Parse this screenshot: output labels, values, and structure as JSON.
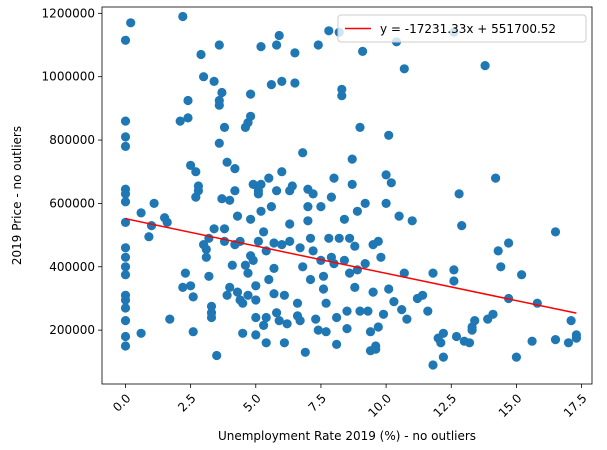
{
  "chart_data": {
    "type": "scatter",
    "xlabel": "Unemployment Rate 2019 (%) - no outliers",
    "ylabel": "2019 Price  - no outliers",
    "xlim": [
      -0.9,
      17.9
    ],
    "ylim": [
      30000,
      1220000
    ],
    "x_ticks": [
      0.0,
      2.5,
      5.0,
      7.5,
      10.0,
      12.5,
      15.0,
      17.5
    ],
    "x_tick_labels": [
      "0.0",
      "2.5",
      "5.0",
      "7.5",
      "10.0",
      "12.5",
      "15.0",
      "17.5"
    ],
    "y_ticks": [
      200000,
      400000,
      600000,
      800000,
      1000000,
      1200000
    ],
    "y_tick_labels": [
      "200000",
      "400000",
      "600000",
      "800000",
      "1000000",
      "1200000"
    ],
    "grid": false,
    "legend_position": "top-right",
    "colors": {
      "points": "#1f77b4",
      "fit_line": "#ff0000"
    },
    "fit_line": {
      "label": "y = -17231.33x + 551700.52",
      "slope": -17231.33,
      "intercept": 551700.52,
      "x_range": [
        0.0,
        17.3
      ]
    },
    "series": [
      {
        "points": [
          [
            0.0,
            1115000
          ],
          [
            0.2,
            1170000
          ],
          [
            0.0,
            860000
          ],
          [
            0.0,
            810000
          ],
          [
            0.0,
            780000
          ],
          [
            0.0,
            645000
          ],
          [
            0.0,
            630000
          ],
          [
            0.0,
            605000
          ],
          [
            0.0,
            540000
          ],
          [
            0.0,
            460000
          ],
          [
            0.0,
            430000
          ],
          [
            0.0,
            400000
          ],
          [
            0.0,
            375000
          ],
          [
            0.0,
            310000
          ],
          [
            0.0,
            295000
          ],
          [
            0.0,
            270000
          ],
          [
            0.0,
            230000
          ],
          [
            0.0,
            180000
          ],
          [
            0.0,
            150000
          ],
          [
            0.6,
            570000
          ],
          [
            0.6,
            190000
          ],
          [
            0.9,
            495000
          ],
          [
            1.0,
            530000
          ],
          [
            1.1,
            600000
          ],
          [
            1.5,
            555000
          ],
          [
            1.6,
            540000
          ],
          [
            1.7,
            235000
          ],
          [
            2.1,
            860000
          ],
          [
            2.2,
            1190000
          ],
          [
            2.2,
            335000
          ],
          [
            2.3,
            380000
          ],
          [
            2.4,
            870000
          ],
          [
            2.4,
            925000
          ],
          [
            2.5,
            720000
          ],
          [
            2.5,
            340000
          ],
          [
            2.6,
            195000
          ],
          [
            2.6,
            305000
          ],
          [
            2.7,
            700000
          ],
          [
            2.7,
            620000
          ],
          [
            2.8,
            640000
          ],
          [
            2.8,
            655000
          ],
          [
            2.9,
            1070000
          ],
          [
            3.0,
            1000000
          ],
          [
            3.0,
            470000
          ],
          [
            3.1,
            455000
          ],
          [
            3.1,
            430000
          ],
          [
            3.2,
            490000
          ],
          [
            3.2,
            370000
          ],
          [
            3.3,
            275000
          ],
          [
            3.3,
            255000
          ],
          [
            3.3,
            240000
          ],
          [
            3.4,
            520000
          ],
          [
            3.4,
            985000
          ],
          [
            3.5,
            120000
          ],
          [
            3.6,
            1100000
          ],
          [
            3.6,
            925000
          ],
          [
            3.6,
            910000
          ],
          [
            3.6,
            790000
          ],
          [
            3.7,
            615000
          ],
          [
            3.7,
            950000
          ],
          [
            3.8,
            520000
          ],
          [
            3.8,
            480000
          ],
          [
            3.8,
            840000
          ],
          [
            3.9,
            310000
          ],
          [
            3.9,
            730000
          ],
          [
            4.0,
            335000
          ],
          [
            4.0,
            610000
          ],
          [
            4.1,
            405000
          ],
          [
            4.2,
            710000
          ],
          [
            4.2,
            640000
          ],
          [
            4.2,
            470000
          ],
          [
            4.3,
            320000
          ],
          [
            4.3,
            560000
          ],
          [
            4.4,
            295000
          ],
          [
            4.4,
            480000
          ],
          [
            4.5,
            285000
          ],
          [
            4.5,
            190000
          ],
          [
            4.6,
            405000
          ],
          [
            4.6,
            840000
          ],
          [
            4.7,
            855000
          ],
          [
            4.7,
            310000
          ],
          [
            4.7,
            380000
          ],
          [
            4.8,
            435000
          ],
          [
            4.8,
            550000
          ],
          [
            4.8,
            875000
          ],
          [
            4.8,
            945000
          ],
          [
            4.9,
            420000
          ],
          [
            4.9,
            660000
          ],
          [
            5.0,
            340000
          ],
          [
            5.0,
            295000
          ],
          [
            5.0,
            240000
          ],
          [
            5.0,
            185000
          ],
          [
            5.1,
            640000
          ],
          [
            5.1,
            480000
          ],
          [
            5.1,
            630000
          ],
          [
            5.2,
            660000
          ],
          [
            5.2,
            575000
          ],
          [
            5.2,
            1095000
          ],
          [
            5.3,
            510000
          ],
          [
            5.3,
            215000
          ],
          [
            5.4,
            160000
          ],
          [
            5.4,
            240000
          ],
          [
            5.4,
            450000
          ],
          [
            5.5,
            680000
          ],
          [
            5.5,
            360000
          ],
          [
            5.6,
            975000
          ],
          [
            5.6,
            590000
          ],
          [
            5.7,
            315000
          ],
          [
            5.7,
            475000
          ],
          [
            5.7,
            395000
          ],
          [
            5.8,
            640000
          ],
          [
            5.8,
            255000
          ],
          [
            5.8,
            1100000
          ],
          [
            5.9,
            230000
          ],
          [
            5.9,
            1130000
          ],
          [
            6.0,
            985000
          ],
          [
            6.0,
            700000
          ],
          [
            6.0,
            470000
          ],
          [
            6.1,
            160000
          ],
          [
            6.1,
            310000
          ],
          [
            6.2,
            220000
          ],
          [
            6.3,
            640000
          ],
          [
            6.3,
            535000
          ],
          [
            6.3,
            480000
          ],
          [
            6.4,
            655000
          ],
          [
            6.5,
            980000
          ],
          [
            6.5,
            1075000
          ],
          [
            6.6,
            245000
          ],
          [
            6.6,
            285000
          ],
          [
            6.7,
            230000
          ],
          [
            6.7,
            460000
          ],
          [
            6.8,
            760000
          ],
          [
            6.8,
            400000
          ],
          [
            6.9,
            130000
          ],
          [
            7.0,
            645000
          ],
          [
            7.0,
            590000
          ],
          [
            7.0,
            545000
          ],
          [
            7.1,
            490000
          ],
          [
            7.1,
            360000
          ],
          [
            7.2,
            630000
          ],
          [
            7.2,
            450000
          ],
          [
            7.3,
            235000
          ],
          [
            7.4,
            200000
          ],
          [
            7.4,
            1100000
          ],
          [
            7.5,
            590000
          ],
          [
            7.5,
            420000
          ],
          [
            7.6,
            370000
          ],
          [
            7.6,
            330000
          ],
          [
            7.7,
            285000
          ],
          [
            7.7,
            195000
          ],
          [
            7.8,
            490000
          ],
          [
            7.8,
            1145000
          ],
          [
            7.9,
            620000
          ],
          [
            7.9,
            430000
          ],
          [
            8.0,
            680000
          ],
          [
            8.0,
            410000
          ],
          [
            8.1,
            240000
          ],
          [
            8.1,
            155000
          ],
          [
            8.2,
            490000
          ],
          [
            8.2,
            1140000
          ],
          [
            8.3,
            960000
          ],
          [
            8.3,
            940000
          ],
          [
            8.4,
            420000
          ],
          [
            8.4,
            550000
          ],
          [
            8.5,
            260000
          ],
          [
            8.5,
            205000
          ],
          [
            8.6,
            380000
          ],
          [
            8.6,
            490000
          ],
          [
            8.7,
            740000
          ],
          [
            8.7,
            660000
          ],
          [
            8.8,
            465000
          ],
          [
            8.8,
            335000
          ],
          [
            8.9,
            575000
          ],
          [
            8.9,
            390000
          ],
          [
            9.0,
            260000
          ],
          [
            9.0,
            840000
          ],
          [
            9.1,
            1080000
          ],
          [
            9.2,
            600000
          ],
          [
            9.2,
            410000
          ],
          [
            9.3,
            260000
          ],
          [
            9.4,
            135000
          ],
          [
            9.4,
            195000
          ],
          [
            9.5,
            470000
          ],
          [
            9.5,
            320000
          ],
          [
            9.6,
            150000
          ],
          [
            9.6,
            140000
          ],
          [
            9.7,
            210000
          ],
          [
            9.7,
            480000
          ],
          [
            9.8,
            430000
          ],
          [
            9.9,
            250000
          ],
          [
            10.0,
            690000
          ],
          [
            10.0,
            600000
          ],
          [
            10.1,
            815000
          ],
          [
            10.1,
            330000
          ],
          [
            10.2,
            665000
          ],
          [
            10.3,
            290000
          ],
          [
            10.4,
            1110000
          ],
          [
            10.5,
            560000
          ],
          [
            10.6,
            265000
          ],
          [
            10.7,
            380000
          ],
          [
            10.7,
            1025000
          ],
          [
            10.8,
            235000
          ],
          [
            11.0,
            545000
          ],
          [
            11.2,
            300000
          ],
          [
            11.4,
            310000
          ],
          [
            11.6,
            260000
          ],
          [
            11.8,
            380000
          ],
          [
            11.8,
            90000
          ],
          [
            12.0,
            175000
          ],
          [
            12.1,
            160000
          ],
          [
            12.2,
            190000
          ],
          [
            12.2,
            115000
          ],
          [
            12.6,
            1140000
          ],
          [
            12.6,
            390000
          ],
          [
            12.6,
            355000
          ],
          [
            12.7,
            180000
          ],
          [
            12.8,
            630000
          ],
          [
            12.9,
            530000
          ],
          [
            13.0,
            165000
          ],
          [
            13.2,
            160000
          ],
          [
            13.3,
            200000
          ],
          [
            13.3,
            210000
          ],
          [
            13.4,
            230000
          ],
          [
            13.8,
            1035000
          ],
          [
            13.9,
            235000
          ],
          [
            14.1,
            250000
          ],
          [
            14.2,
            680000
          ],
          [
            14.3,
            450000
          ],
          [
            14.4,
            400000
          ],
          [
            14.7,
            300000
          ],
          [
            14.7,
            475000
          ],
          [
            15.0,
            115000
          ],
          [
            15.2,
            375000
          ],
          [
            15.6,
            165000
          ],
          [
            15.8,
            285000
          ],
          [
            16.5,
            510000
          ],
          [
            16.5,
            170000
          ],
          [
            17.0,
            160000
          ],
          [
            17.1,
            230000
          ],
          [
            17.3,
            175000
          ],
          [
            17.3,
            185000
          ]
        ]
      }
    ]
  }
}
